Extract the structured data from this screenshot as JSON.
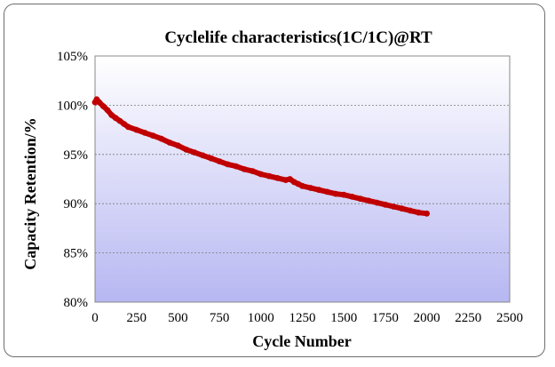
{
  "chart_data": {
    "type": "line",
    "title": "Cyclelife characteristics(1C/1C)@RT",
    "xlabel": "Cycle Number",
    "ylabel": "Capacity Retention/%",
    "xlim": [
      0,
      2500
    ],
    "ylim": [
      80,
      105
    ],
    "x_ticks": [
      "0",
      "250",
      "500",
      "750",
      "1000",
      "1250",
      "1500",
      "1750",
      "2000",
      "2250",
      "2500"
    ],
    "y_ticks": [
      "80%",
      "85%",
      "90%",
      "95%",
      "100%",
      "105%"
    ],
    "grid": "horizontal",
    "series_color": "#c00000",
    "series": [
      {
        "x": [
          0,
          10,
          25,
          50,
          75,
          100,
          125,
          150,
          175,
          200,
          250,
          300,
          350,
          400,
          450,
          500,
          550,
          600,
          650,
          700,
          750,
          800,
          850,
          900,
          950,
          1000,
          1050,
          1100,
          1150,
          1175,
          1200,
          1225,
          1250,
          1300,
          1350,
          1400,
          1450,
          1500,
          1550,
          1600,
          1650,
          1700,
          1750,
          1800,
          1850,
          1900,
          1950,
          2000
        ],
        "y": [
          100.3,
          100.6,
          100.3,
          99.9,
          99.5,
          99.0,
          98.7,
          98.4,
          98.1,
          97.8,
          97.5,
          97.2,
          96.9,
          96.6,
          96.2,
          95.9,
          95.5,
          95.2,
          94.9,
          94.6,
          94.3,
          94.0,
          93.8,
          93.5,
          93.3,
          93.0,
          92.8,
          92.6,
          92.4,
          92.5,
          92.2,
          92.0,
          91.8,
          91.6,
          91.4,
          91.2,
          91.0,
          90.9,
          90.7,
          90.5,
          90.3,
          90.1,
          89.9,
          89.7,
          89.5,
          89.3,
          89.1,
          89.0
        ]
      }
    ]
  }
}
